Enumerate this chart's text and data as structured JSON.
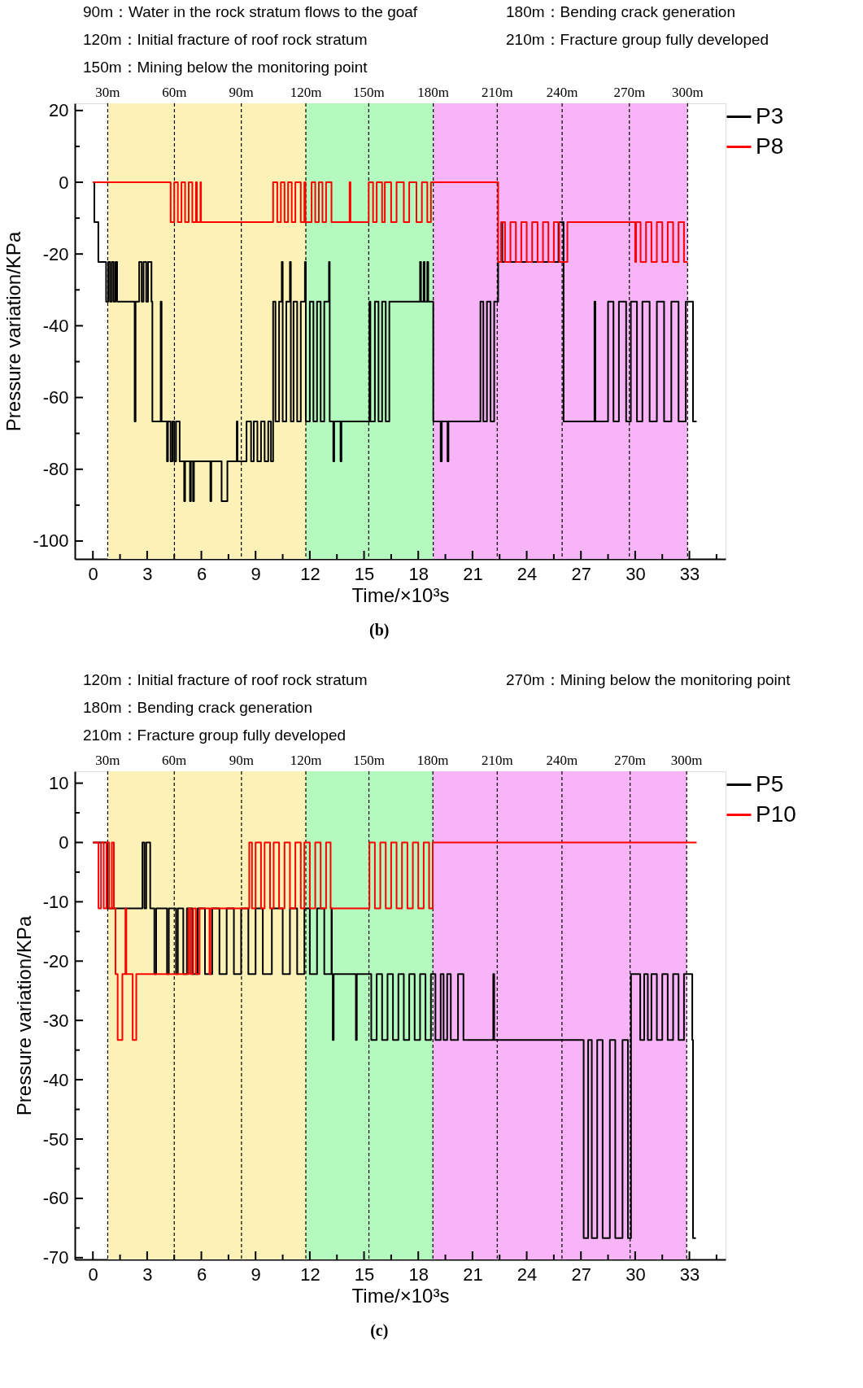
{
  "chart_data": [
    {
      "type": "step",
      "xlabel": "Time/×10³s",
      "ylabel": "Pressure variation/KPa",
      "annotations": [
        "90m：Water in the rock stratum flows to the goaf",
        "120m：Initial fracture of roof rock stratum",
        "150m：Mining below the monitoring point",
        "180m：Bending crack generation",
        "210m：Fracture group fully developed",
        "(b)"
      ],
      "xlim": [
        -1,
        35
      ],
      "ylim": [
        -105,
        22
      ],
      "xticks": [
        0,
        {
          "value": 1.5,
          "label": null
        },
        3,
        {
          "value": 4.5,
          "label": null
        },
        6,
        {
          "value": 7.5,
          "label": null
        },
        9,
        {
          "value": 10.5,
          "label": null
        },
        12,
        {
          "value": 13.5,
          "label": null
        },
        15,
        {
          "value": 16.5,
          "label": null
        },
        18,
        {
          "value": 19.5,
          "label": null
        },
        21,
        {
          "value": 22.5,
          "label": null
        },
        24,
        {
          "value": 25.5,
          "label": null
        },
        27,
        {
          "value": 28.5,
          "label": null
        },
        30,
        {
          "value": 31.5,
          "label": null
        },
        33,
        {
          "value": 34.5,
          "label": null
        }
      ],
      "yticks": [
        -100,
        {
          "value": -90,
          "label": null
        },
        -80,
        {
          "value": -70,
          "label": null
        },
        -60,
        {
          "value": -50,
          "label": null
        },
        -40,
        {
          "value": -30,
          "label": null
        },
        -20,
        {
          "value": -10,
          "label": null
        },
        0,
        {
          "value": 10,
          "label": null
        },
        20
      ],
      "grid": false,
      "legend": "right",
      "line_style": "solid",
      "bands": [
        {
          "axis": "x",
          "from": 0.82,
          "to": 11.78,
          "color": "#fcf2b7"
        },
        {
          "axis": "x",
          "from": 11.78,
          "to": 18.83,
          "color": "#b4fabe"
        },
        {
          "axis": "x",
          "from": 18.83,
          "to": 32.9,
          "color": "#f7b5f7"
        }
      ],
      "ref_lines": [
        {
          "axis": "x",
          "value": 0.82,
          "label": "30m",
          "line_style": "dashed",
          "color": "#000000"
        },
        {
          "axis": "x",
          "value": 4.51,
          "label": "60m",
          "line_style": "dashed",
          "color": "#000000"
        },
        {
          "axis": "x",
          "value": 8.21,
          "label": "90m",
          "line_style": "dashed",
          "color": "#000000"
        },
        {
          "axis": "x",
          "value": 11.78,
          "label": "120m",
          "line_style": "dashed",
          "color": "#000000"
        },
        {
          "axis": "x",
          "value": 15.26,
          "label": "150m",
          "line_style": "dashed",
          "color": "#000000"
        },
        {
          "axis": "x",
          "value": 18.83,
          "label": "180m",
          "line_style": "dashed",
          "color": "#000000"
        },
        {
          "axis": "x",
          "value": 22.37,
          "label": "210m",
          "line_style": "dashed",
          "color": "#000000"
        },
        {
          "axis": "x",
          "value": 25.96,
          "label": "240m",
          "line_style": "dashed",
          "color": "#000000"
        },
        {
          "axis": "x",
          "value": 29.68,
          "label": "270m",
          "line_style": "dashed",
          "color": "#000000"
        },
        {
          "axis": "x",
          "value": 32.9,
          "label": "300m",
          "line_style": "dashed",
          "color": "#000000"
        }
      ],
      "series": [
        {
          "name": "P3",
          "color": "#000000",
          "x": [
            0,
            0.08,
            0.3,
            0.73,
            0.85,
            0.95,
            1.05,
            1.15,
            1.25,
            1.34,
            2.31,
            2.36,
            2.56,
            2.7,
            2.8,
            2.95,
            3.05,
            3.24,
            3.29,
            3.75,
            3.8,
            4.1,
            4.15,
            4.3,
            4.4,
            4.5,
            4.6,
            4.8,
            5.05,
            5.1,
            5.37,
            5.42,
            5.54,
            5.59,
            6.5,
            6.55,
            7.12,
            7.44,
            7.96,
            8.0,
            8.5,
            8.75,
            8.9,
            9.1,
            9.3,
            9.5,
            9.7,
            9.85,
            9.97,
            10.1,
            10.3,
            10.45,
            10.5,
            10.7,
            10.9,
            10.95,
            11.1,
            11.3,
            11.5,
            11.73,
            11.78,
            12.0,
            12.2,
            12.4,
            12.6,
            12.8,
            13.06,
            13.1,
            13.3,
            13.35,
            13.7,
            13.75,
            15.3,
            15.35,
            15.6,
            15.8,
            16.0,
            16.2,
            16.4,
            18.1,
            18.15,
            18.3,
            18.35,
            18.5,
            18.55,
            18.83,
            19.24,
            19.3,
            19.62,
            19.67,
            21.44,
            21.6,
            21.8,
            22.0,
            22.2,
            22.42,
            22.6,
            22.65,
            25.76,
            26.04,
            27.75,
            27.8,
            28.5,
            28.8,
            29.1,
            29.5,
            29.76,
            30.1,
            30.4,
            30.8,
            31.2,
            31.6,
            32.0,
            32.4,
            32.8,
            33.2,
            33.4
          ],
          "values": [
            0,
            -11.1,
            -22.2,
            -33.3,
            -22.2,
            -33.3,
            -22.2,
            -33.3,
            -22.2,
            -33.3,
            -66.7,
            -33.3,
            -22.2,
            -33.3,
            -22.2,
            -33.3,
            -22.2,
            -33.3,
            -66.7,
            -33.3,
            -66.7,
            -77.8,
            -66.7,
            -77.8,
            -66.7,
            -77.8,
            -66.7,
            -77.8,
            -88.9,
            -77.8,
            -88.9,
            -77.8,
            -88.9,
            -77.8,
            -88.9,
            -77.8,
            -88.9,
            -77.8,
            -66.7,
            -77.8,
            -66.7,
            -77.8,
            -66.7,
            -77.8,
            -66.7,
            -77.8,
            -66.7,
            -77.8,
            -33.3,
            -66.7,
            -33.3,
            -22.2,
            -66.7,
            -33.3,
            -22.2,
            -66.7,
            -33.3,
            -66.7,
            -33.3,
            -22.2,
            -66.7,
            -33.3,
            -66.7,
            -33.3,
            -66.7,
            -33.3,
            -22.2,
            -66.7,
            -77.8,
            -66.7,
            -77.8,
            -66.7,
            -33.3,
            -66.7,
            -33.3,
            -66.7,
            -33.3,
            -66.7,
            -33.3,
            -22.2,
            -33.3,
            -22.2,
            -33.3,
            -22.2,
            -33.3,
            -66.7,
            -77.8,
            -66.7,
            -77.8,
            -66.7,
            -33.3,
            -66.7,
            -33.3,
            -66.7,
            -33.3,
            -22.2,
            -11.1,
            -22.2,
            -11.1,
            -66.7,
            -33.3,
            -66.7,
            -33.3,
            -66.7,
            -33.3,
            -66.7,
            -33.3,
            -66.7,
            -33.3,
            -66.7,
            -33.3,
            -66.7,
            -33.3,
            -66.7,
            -33.3,
            -66.7,
            -66.7
          ]
        },
        {
          "name": "P8",
          "color": "#ff0000",
          "x": [
            0,
            4.3,
            4.5,
            4.7,
            4.9,
            5.1,
            5.3,
            5.5,
            5.7,
            5.75,
            5.95,
            5.98,
            9.97,
            10.2,
            10.4,
            10.6,
            10.8,
            11.0,
            11.2,
            11.5,
            11.7,
            11.76,
            12.1,
            12.3,
            12.5,
            12.7,
            12.9,
            13.2,
            14.2,
            14.25,
            15.26,
            15.5,
            15.7,
            16.0,
            16.15,
            16.5,
            16.8,
            17.2,
            17.5,
            17.9,
            18.2,
            18.5,
            18.7,
            22.42,
            22.6,
            22.8,
            23.1,
            23.4,
            23.7,
            24.0,
            24.3,
            24.6,
            24.9,
            25.2,
            25.5,
            25.8,
            26.25,
            30.0,
            30.05,
            30.3,
            30.6,
            30.9,
            31.2,
            31.5,
            31.8,
            32.1,
            32.4,
            32.7,
            32.9
          ],
          "values": [
            0,
            -11.1,
            0,
            -11.1,
            0,
            -11.1,
            0,
            -11.1,
            0,
            -11.1,
            0,
            -11.1,
            0,
            -11.1,
            0,
            -11.1,
            0,
            -11.1,
            0,
            -11.1,
            0,
            -11.1,
            0,
            -11.1,
            0,
            -11.1,
            0,
            -11.1,
            0,
            -11.1,
            0,
            -11.1,
            0,
            -11.1,
            0,
            -11.1,
            0,
            -11.1,
            0,
            -11.1,
            0,
            -11.1,
            0,
            -22.2,
            -11.1,
            -22.2,
            -11.1,
            -22.2,
            -11.1,
            -22.2,
            -11.1,
            -22.2,
            -11.1,
            -22.2,
            -11.1,
            -22.2,
            -11.1,
            -22.2,
            -11.1,
            -22.2,
            -11.1,
            -22.2,
            -11.1,
            -22.2,
            -11.1,
            -22.2,
            -11.1,
            -22.2,
            -22.2
          ]
        }
      ]
    },
    {
      "type": "step",
      "xlabel": "Time/×10³s",
      "ylabel": "Pressure variation/KPa",
      "annotations": [
        "120m：Initial fracture of roof rock stratum",
        "180m：Bending crack generation",
        "210m：Fracture group fully developed",
        "270m：Mining below the monitoring point",
        "(c)"
      ],
      "xlim": [
        -1,
        35
      ],
      "ylim": [
        -70.3,
        12
      ],
      "xticks": [
        0,
        {
          "value": 1.5,
          "label": null
        },
        3,
        {
          "value": 4.5,
          "label": null
        },
        6,
        {
          "value": 7.5,
          "label": null
        },
        9,
        {
          "value": 10.5,
          "label": null
        },
        12,
        {
          "value": 13.5,
          "label": null
        },
        15,
        {
          "value": 16.5,
          "label": null
        },
        18,
        {
          "value": 19.5,
          "label": null
        },
        21,
        {
          "value": 22.5,
          "label": null
        },
        24,
        {
          "value": 25.5,
          "label": null
        },
        27,
        {
          "value": 28.5,
          "label": null
        },
        30,
        {
          "value": 31.5,
          "label": null
        },
        33,
        {
          "value": 34.5,
          "label": null
        }
      ],
      "yticks": [
        -70,
        {
          "value": -65,
          "label": null
        },
        -60,
        {
          "value": -55,
          "label": null
        },
        -50,
        {
          "value": -45,
          "label": null
        },
        -40,
        {
          "value": -35,
          "label": null
        },
        -30,
        {
          "value": -25,
          "label": null
        },
        -20,
        {
          "value": -15,
          "label": null
        },
        -10,
        {
          "value": -5,
          "label": null
        },
        0,
        {
          "value": 5,
          "label": null
        },
        10
      ],
      "grid": false,
      "legend": "right",
      "line_style": "solid",
      "bands": [
        {
          "axis": "x",
          "from": 0.82,
          "to": 11.78,
          "color": "#fcf2b7"
        },
        {
          "axis": "x",
          "from": 11.78,
          "to": 18.81,
          "color": "#b4fabe"
        },
        {
          "axis": "x",
          "from": 18.81,
          "to": 32.85,
          "color": "#f7b5f7"
        }
      ],
      "ref_lines": [
        {
          "axis": "x",
          "value": 0.82,
          "label": "30m",
          "line_style": "dashed",
          "color": "#000000"
        },
        {
          "axis": "x",
          "value": 4.5,
          "label": "60m",
          "line_style": "dashed",
          "color": "#000000"
        },
        {
          "axis": "x",
          "value": 8.22,
          "label": "90m",
          "line_style": "dashed",
          "color": "#000000"
        },
        {
          "axis": "x",
          "value": 11.78,
          "label": "120m",
          "line_style": "dashed",
          "color": "#000000"
        },
        {
          "axis": "x",
          "value": 15.27,
          "label": "150m",
          "line_style": "dashed",
          "color": "#000000"
        },
        {
          "axis": "x",
          "value": 18.81,
          "label": "180m",
          "line_style": "dashed",
          "color": "#000000"
        },
        {
          "axis": "x",
          "value": 22.37,
          "label": "210m",
          "line_style": "dashed",
          "color": "#000000"
        },
        {
          "axis": "x",
          "value": 25.95,
          "label": "240m",
          "line_style": "dashed",
          "color": "#000000"
        },
        {
          "axis": "x",
          "value": 29.72,
          "label": "270m",
          "line_style": "dashed",
          "color": "#000000"
        },
        {
          "axis": "x",
          "value": 32.85,
          "label": "300m",
          "line_style": "dashed",
          "color": "#000000"
        }
      ],
      "series": [
        {
          "name": "P5",
          "color": "#000000",
          "x": [
            0,
            0.8,
            2.74,
            2.85,
            2.95,
            3.17,
            3.4,
            3.5,
            4.1,
            4.2,
            4.6,
            4.7,
            5.0,
            5.2,
            5.5,
            5.8,
            6.2,
            6.6,
            7.0,
            7.4,
            7.8,
            8.2,
            8.6,
            9.0,
            9.4,
            9.9,
            10.5,
            10.9,
            11.3,
            11.7,
            12.0,
            12.4,
            12.8,
            13.2,
            13.22,
            13.27,
            13.32,
            14.55,
            14.6,
            15.4,
            15.7,
            16.0,
            16.3,
            16.6,
            16.9,
            17.2,
            17.5,
            17.8,
            18.1,
            18.4,
            18.7,
            18.95,
            19.24,
            19.4,
            19.6,
            19.8,
            20.2,
            20.5,
            22.15,
            22.2,
            27.15,
            27.4,
            27.6,
            27.9,
            28.2,
            28.6,
            28.9,
            29.3,
            29.6,
            29.77,
            30.28,
            30.5,
            30.7,
            30.9,
            31.2,
            31.5,
            31.8,
            32.1,
            32.4,
            32.7,
            33.16,
            33.2,
            33.36
          ],
          "values": [
            0,
            -11.1,
            0,
            -11.1,
            0,
            -11.1,
            -22.2,
            -11.1,
            -22.2,
            -11.1,
            -22.2,
            -11.1,
            -22.2,
            -11.1,
            -22.2,
            -11.1,
            -22.2,
            -11.1,
            -22.2,
            -11.1,
            -22.2,
            -11.1,
            -22.2,
            -11.1,
            -22.2,
            -11.1,
            -22.2,
            -11.1,
            -22.2,
            -11.1,
            -22.2,
            -11.1,
            -22.2,
            -11.1,
            -22.2,
            -33.3,
            -22.2,
            -33.3,
            -22.2,
            -33.3,
            -22.2,
            -33.3,
            -22.2,
            -33.3,
            -22.2,
            -33.3,
            -22.2,
            -33.3,
            -22.2,
            -33.3,
            -22.2,
            -33.3,
            -22.2,
            -33.3,
            -22.2,
            -33.3,
            -22.2,
            -33.3,
            -22.2,
            -33.3,
            -66.7,
            -33.3,
            -66.7,
            -33.3,
            -66.7,
            -33.3,
            -66.7,
            -33.3,
            -66.7,
            -22.2,
            -33.3,
            -22.2,
            -33.3,
            -22.2,
            -33.3,
            -22.2,
            -33.3,
            -22.2,
            -33.3,
            -22.2,
            -33.3,
            -66.7,
            -66.7
          ]
        },
        {
          "name": "P10",
          "color": "#ff0000",
          "x": [
            0,
            0.31,
            0.45,
            0.6,
            0.75,
            0.9,
            1.05,
            1.16,
            1.25,
            1.37,
            1.63,
            1.8,
            1.85,
            2.2,
            2.4,
            5.3,
            5.4,
            5.55,
            5.7,
            5.9,
            6.45,
            6.5,
            8.65,
            8.8,
            9.0,
            9.3,
            9.5,
            9.8,
            10.0,
            10.3,
            10.6,
            10.9,
            11.2,
            11.5,
            11.7,
            12.0,
            12.3,
            12.6,
            12.9,
            13.15,
            15.3,
            15.6,
            15.9,
            16.2,
            16.5,
            16.8,
            17.1,
            17.4,
            17.7,
            18.0,
            18.3,
            18.6,
            18.8,
            33.4
          ],
          "values": [
            0,
            -11.1,
            0,
            -11.1,
            0,
            -11.1,
            0,
            -11.1,
            -22.2,
            -33.3,
            -22.2,
            -11.1,
            -22.2,
            -33.3,
            -22.2,
            -11.1,
            -22.2,
            -11.1,
            -22.2,
            -11.1,
            -22.2,
            -11.1,
            0,
            -11.1,
            0,
            -11.1,
            0,
            -11.1,
            0,
            -11.1,
            0,
            -11.1,
            0,
            -11.1,
            0,
            -11.1,
            0,
            -11.1,
            0,
            -11.1,
            0,
            -11.1,
            0,
            -11.1,
            0,
            -11.1,
            0,
            -11.1,
            0,
            -11.1,
            0,
            -11.1,
            0,
            0
          ]
        }
      ]
    }
  ]
}
